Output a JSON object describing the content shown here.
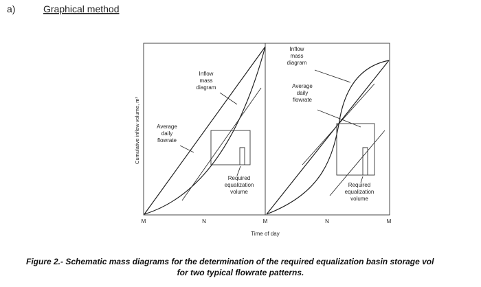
{
  "heading": {
    "marker": "a)",
    "title": "Graphical method"
  },
  "figure": {
    "y_axis_label": "Cumulative inflow volume, m³",
    "x_axis_label": "Time of day",
    "x_ticks": [
      "M",
      "N",
      "M",
      "N",
      "M"
    ],
    "left_panel": {
      "inflow_label": [
        "Inflow",
        "mass",
        "diagram"
      ],
      "average_label": [
        "Average",
        "daily",
        "flowrate"
      ],
      "required_label": [
        "Required",
        "equalization",
        "volume"
      ]
    },
    "right_panel": {
      "inflow_label": [
        "Inflow",
        "mass",
        "diagram"
      ],
      "average_label": [
        "Average",
        "daily",
        "flowrate"
      ],
      "required_label": [
        "Required",
        "equalization",
        "volume"
      ]
    }
  },
  "caption": {
    "line1": "Figure 2.- Schematic mass diagrams for the determination of the required equalization basin storage vol",
    "line2": "for two typical flowrate patterns."
  }
}
